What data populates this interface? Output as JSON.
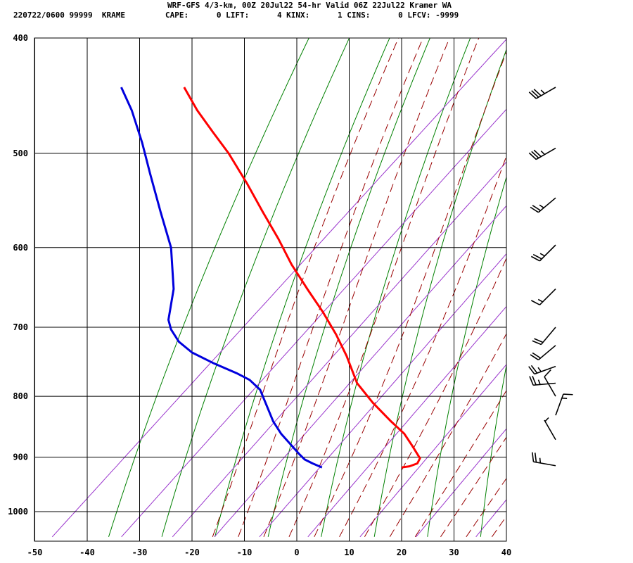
{
  "header": {
    "title": "WRF-GFS 4/3-km, 00Z 20Jul22 54-hr Valid 06Z 22Jul22 Kramer WA",
    "station": "220722/0600 99999  KRAME",
    "indices": "CAPE:      0 LIFT:      4 KINX:      1 CINS:      0 LFCV: -9999"
  },
  "colors": {
    "temperature": "#ff0000",
    "dewpoint": "#0000dd",
    "isotherm_grid": "#000000",
    "isobar_grid": "#000000",
    "dry_adiabat": "#008000",
    "moist_adiabat": "#990000",
    "mixing_ratio": "#9933cc",
    "wind_barb": "#000000"
  },
  "chart_data": {
    "type": "skew-T log-P sounding",
    "xlabel": "",
    "ylabel": "",
    "x_ticks": [
      -50,
      -40,
      -30,
      -20,
      -10,
      0,
      10,
      20,
      30,
      40
    ],
    "y_ticks": [
      400,
      500,
      600,
      700,
      800,
      900,
      1000
    ],
    "xlim": [
      -50,
      40
    ],
    "ylim": [
      1040,
      400
    ],
    "y_scale": "log",
    "grid": true,
    "series": [
      {
        "kind": "temperature",
        "points": [
          {
            "p": 918,
            "t": 20.0
          },
          {
            "p": 916,
            "t": 21.5
          },
          {
            "p": 911,
            "t": 23.0
          },
          {
            "p": 902,
            "t": 23.5
          },
          {
            "p": 880,
            "t": 22.0
          },
          {
            "p": 860,
            "t": 20.5
          },
          {
            "p": 840,
            "t": 18.0
          },
          {
            "p": 810,
            "t": 14.5
          },
          {
            "p": 780,
            "t": 11.5
          },
          {
            "p": 740,
            "t": 9.5
          },
          {
            "p": 710,
            "t": 7.5
          },
          {
            "p": 680,
            "t": 5.0
          },
          {
            "p": 650,
            "t": 2.0
          },
          {
            "p": 620,
            "t": -1.0
          },
          {
            "p": 590,
            "t": -3.5
          },
          {
            "p": 560,
            "t": -6.5
          },
          {
            "p": 530,
            "t": -9.5
          },
          {
            "p": 500,
            "t": -13.0
          },
          {
            "p": 480,
            "t": -16.0
          },
          {
            "p": 460,
            "t": -19.0
          },
          {
            "p": 440,
            "t": -21.5
          }
        ]
      },
      {
        "kind": "dewpoint",
        "points": [
          {
            "p": 918,
            "t": 4.8
          },
          {
            "p": 911,
            "t": 3.0
          },
          {
            "p": 904,
            "t": 1.5
          },
          {
            "p": 895,
            "t": 0.5
          },
          {
            "p": 860,
            "t": -3.0
          },
          {
            "p": 840,
            "t": -4.5
          },
          {
            "p": 790,
            "t": -7.0
          },
          {
            "p": 775,
            "t": -9.0
          },
          {
            "p": 765,
            "t": -11.5
          },
          {
            "p": 750,
            "t": -16.0
          },
          {
            "p": 735,
            "t": -20.0
          },
          {
            "p": 720,
            "t": -22.5
          },
          {
            "p": 703,
            "t": -24.0
          },
          {
            "p": 690,
            "t": -24.5
          },
          {
            "p": 650,
            "t": -23.5
          },
          {
            "p": 600,
            "t": -24.0
          },
          {
            "p": 560,
            "t": -26.0
          },
          {
            "p": 520,
            "t": -28.0
          },
          {
            "p": 490,
            "t": -29.5
          },
          {
            "p": 460,
            "t": -31.5
          },
          {
            "p": 440,
            "t": -33.5
          }
        ]
      }
    ],
    "isotherms": [
      -50,
      -40,
      -30,
      -20,
      -10,
      0,
      10,
      20,
      30,
      40
    ],
    "isobars": [
      400,
      500,
      600,
      700,
      800,
      900,
      1000
    ],
    "dry_adiabats_theta_c": [
      -40,
      -30,
      -20,
      -10,
      0,
      10,
      20,
      30,
      40,
      50,
      60,
      70,
      80,
      90
    ],
    "moist_adiabats_theta_c": [
      -20,
      -15,
      -10,
      -5,
      0,
      5,
      10,
      15,
      20,
      25,
      30,
      35
    ],
    "mixing_ratio_lines_gkg": [
      0.05,
      0.2,
      0.5,
      1,
      2,
      4,
      8,
      16,
      32,
      48
    ],
    "wind_barbs": [
      {
        "p": 440,
        "dir": 240,
        "speed_kt": 35
      },
      {
        "p": 495,
        "dir": 240,
        "speed_kt": 35
      },
      {
        "p": 545,
        "dir": 230,
        "speed_kt": 25
      },
      {
        "p": 597,
        "dir": 225,
        "speed_kt": 25
      },
      {
        "p": 650,
        "dir": 225,
        "speed_kt": 15
      },
      {
        "p": 700,
        "dir": 220,
        "speed_kt": 20
      },
      {
        "p": 725,
        "dir": 230,
        "speed_kt": 20
      },
      {
        "p": 755,
        "dir": 250,
        "speed_kt": 25
      },
      {
        "p": 780,
        "dir": 265,
        "speed_kt": 25
      },
      {
        "p": 800,
        "dir": 330,
        "speed_kt": 10
      },
      {
        "p": 830,
        "dir": 20,
        "speed_kt": 15
      },
      {
        "p": 870,
        "dir": 330,
        "speed_kt": 5
      },
      {
        "p": 915,
        "dir": 280,
        "speed_kt": 25
      }
    ]
  }
}
